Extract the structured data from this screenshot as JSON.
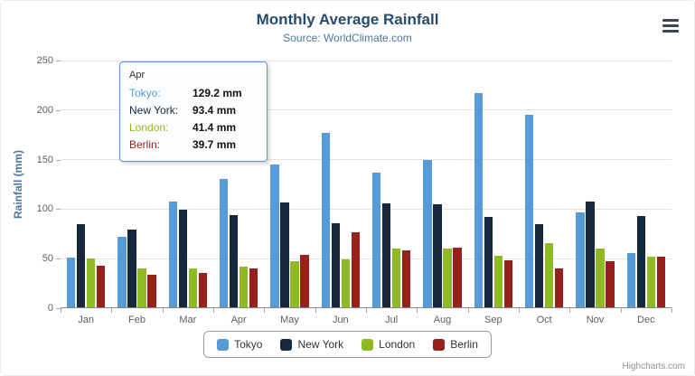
{
  "chart": {
    "title": "Monthly Average Rainfall",
    "subtitle": "Source: WorldClimate.com",
    "y_axis_title": "Rainfall (mm)",
    "credits": "Highcharts.com",
    "menu_icon": "hamburger-menu-icon"
  },
  "chart_data": {
    "type": "bar",
    "title": "Monthly Average Rainfall",
    "subtitle": "Source: WorldClimate.com",
    "xlabel": "",
    "ylabel": "Rainfall (mm)",
    "ylim": [
      0,
      250
    ],
    "y_ticks": [
      0,
      50,
      100,
      150,
      200,
      250
    ],
    "grid": true,
    "legend_position": "bottom",
    "categories": [
      "Jan",
      "Feb",
      "Mar",
      "Apr",
      "May",
      "Jun",
      "Jul",
      "Aug",
      "Sep",
      "Oct",
      "Nov",
      "Dec"
    ],
    "series": [
      {
        "name": "Tokyo",
        "color": "#569bd8",
        "values": [
          49.9,
          71.5,
          106.4,
          129.2,
          144.0,
          176.0,
          135.6,
          148.5,
          216.4,
          194.1,
          95.6,
          54.4
        ]
      },
      {
        "name": "New York",
        "color": "#16293c",
        "values": [
          83.6,
          78.8,
          98.5,
          93.4,
          106.0,
          84.5,
          105.0,
          104.3,
          91.2,
          83.5,
          106.6,
          92.3
        ]
      },
      {
        "name": "London",
        "color": "#8fba25",
        "values": [
          48.9,
          38.8,
          39.3,
          41.4,
          47.0,
          48.3,
          59.0,
          59.6,
          52.4,
          65.2,
          59.3,
          51.2
        ]
      },
      {
        "name": "Berlin",
        "color": "#96201b",
        "values": [
          42.4,
          33.2,
          34.5,
          39.7,
          52.6,
          75.5,
          57.4,
          60.4,
          47.6,
          39.1,
          46.8,
          51.1
        ]
      }
    ]
  },
  "tooltip": {
    "header": "Apr",
    "rows": [
      {
        "label": "Tokyo:",
        "value": "129.2 mm",
        "color": "#569bd8"
      },
      {
        "label": "New York:",
        "value": "93.4 mm",
        "color": "#16293c"
      },
      {
        "label": "London:",
        "value": "41.4 mm",
        "color": "#8fba25"
      },
      {
        "label": "Berlin:",
        "value": "39.7 mm",
        "color": "#96201b"
      }
    ]
  }
}
